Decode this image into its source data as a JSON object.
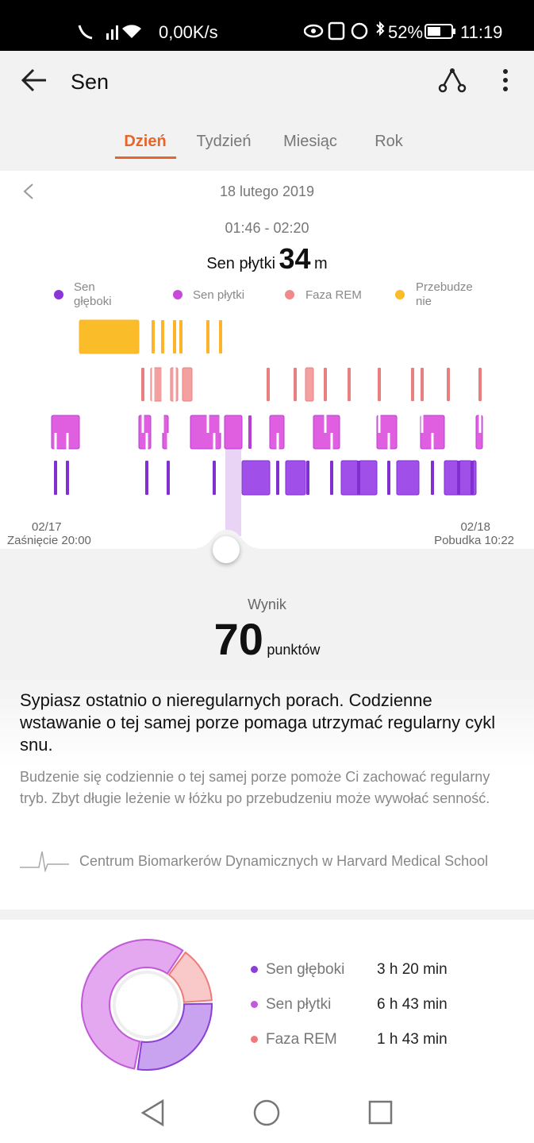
{
  "status": {
    "speed": "0,00K/s",
    "battery": "52%",
    "time": "11:19"
  },
  "header": {
    "title": "Sen"
  },
  "tabs": [
    "Dzień",
    "Tydzień",
    "Miesiąc",
    "Rok"
  ],
  "day": {
    "date": "18 lutego 2019",
    "range": "01:46 - 02:20",
    "stage": "Sen płytki",
    "amount": "34",
    "unit": "m"
  },
  "legend": [
    "Sen głęboki",
    "Sen płytki",
    "Faza REM",
    "Przebudzenie"
  ],
  "axis": {
    "start_date": "02/17",
    "start_label": "Zaśnięcie 20:00",
    "end_date": "02/18",
    "end_label": "Pobudka 10:22"
  },
  "score": {
    "label": "Wynik",
    "value": "70",
    "unit": "punktów"
  },
  "advice": {
    "heading": "Sypiasz ostatnio o nieregularnych porach. Codzienne wstawanie o tej samej porze pomaga utrzymać regularny cykl snu.",
    "body": "Budzenie się codziennie o tej samej porze pomoże Ci zachować regularny tryb. Zbyt długie leżenie w łóżku po przebudzeniu może wywołać senność.",
    "source": "Centrum Biomarkerów Dynamicznych w Harvard Medical School"
  },
  "summary": [
    {
      "name": "Sen głęboki",
      "value": "3 h 20 min"
    },
    {
      "name": "Sen płytki",
      "value": "6 h 43 min"
    },
    {
      "name": "Faza REM",
      "value": "1 h 43 min"
    }
  ]
}
